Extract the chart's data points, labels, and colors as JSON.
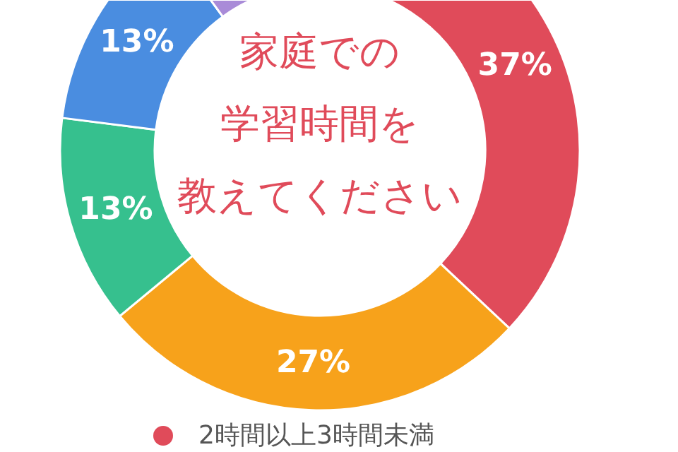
{
  "chart_data": {
    "type": "donut",
    "title": "家庭での学習時間を教えてください",
    "categories": [
      "2時間以上3時間未満",
      null,
      null,
      null,
      null
    ],
    "values": [
      37,
      27,
      13,
      13,
      10
    ],
    "colors": [
      "#e04b5a",
      "#f7a21b",
      "#36c08e",
      "#4a8de0",
      "#a98bd8"
    ],
    "value_labels": [
      "37%",
      "27%",
      "13%",
      "13%",
      null
    ],
    "legend": "bottom"
  }
}
